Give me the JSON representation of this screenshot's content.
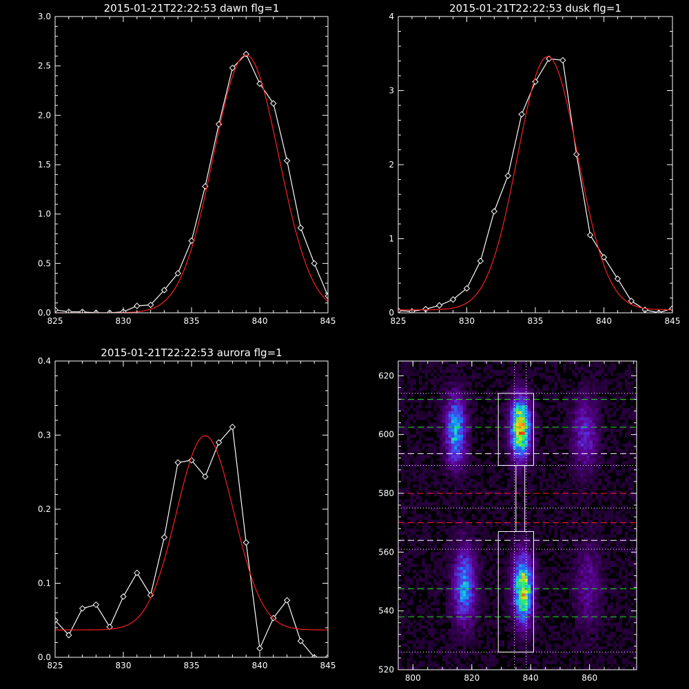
{
  "chart_data": [
    {
      "id": "dawn",
      "type": "line",
      "title": "2015-01-21T22:22:53 dawn flg=1",
      "xlim": [
        825,
        845
      ],
      "ylim": [
        0,
        3.0
      ],
      "xticks": [
        "825",
        "830",
        "835",
        "840",
        "845"
      ],
      "yticks": [
        "0.0",
        "0.5",
        "1.0",
        "1.5",
        "2.0",
        "2.5",
        "3.0"
      ],
      "series": [
        {
          "kind": "data",
          "color": "#ffffff",
          "marker": "diamond",
          "x": [
            825,
            826,
            827,
            828,
            829,
            830,
            831,
            832,
            833,
            834,
            835,
            836,
            837,
            838,
            839,
            840,
            841,
            842,
            843,
            844,
            845
          ],
          "y": [
            0.03,
            0.01,
            0.01,
            0.0,
            0.0,
            0.01,
            0.07,
            0.08,
            0.23,
            0.4,
            0.73,
            1.28,
            1.91,
            2.48,
            2.62,
            2.32,
            2.12,
            1.54,
            0.86,
            0.5,
            0.17
          ]
        },
        {
          "kind": "fit",
          "color": "#ff2020",
          "A": 2.61,
          "mu": 839.0,
          "sigma": 2.4,
          "base": 0.0
        }
      ]
    },
    {
      "id": "dusk",
      "type": "line",
      "title": "2015-01-21T22:22:53 dusk flg=1",
      "xlim": [
        825,
        845
      ],
      "ylim": [
        0,
        4
      ],
      "xticks": [
        "825",
        "830",
        "835",
        "840",
        "845"
      ],
      "yticks": [
        "0",
        "1",
        "2",
        "3",
        "4"
      ],
      "series": [
        {
          "kind": "data",
          "color": "#ffffff",
          "marker": "diamond",
          "x": [
            825,
            826,
            827,
            828,
            829,
            830,
            831,
            832,
            833,
            834,
            835,
            836,
            837,
            838,
            839,
            840,
            841,
            842,
            843,
            844,
            845
          ],
          "y": [
            0.03,
            0.02,
            0.05,
            0.1,
            0.18,
            0.33,
            0.7,
            1.37,
            1.85,
            2.68,
            3.12,
            3.43,
            3.41,
            2.14,
            1.05,
            0.75,
            0.46,
            0.16,
            0.04,
            0.0,
            0.06
          ]
        },
        {
          "kind": "fit",
          "color": "#ff2020",
          "A": 3.42,
          "mu": 835.9,
          "sigma": 2.2,
          "base": 0.04
        }
      ]
    },
    {
      "id": "aurora",
      "type": "line",
      "title": "2015-01-21T22:22:53 aurora flg=1",
      "xlim": [
        825,
        845
      ],
      "ylim": [
        0,
        0.4
      ],
      "xticks": [
        "825",
        "830",
        "835",
        "840",
        "845"
      ],
      "yticks": [
        "0.0",
        "0.1",
        "0.2",
        "0.3",
        "0.4"
      ],
      "series": [
        {
          "kind": "data",
          "color": "#ffffff",
          "marker": "diamond",
          "x": [
            825,
            826,
            827,
            828,
            829,
            830,
            831,
            832,
            833,
            834,
            835,
            836,
            837,
            838,
            839,
            840,
            841,
            842,
            843,
            844,
            845
          ],
          "y": [
            0.05,
            0.03,
            0.066,
            0.071,
            0.041,
            0.082,
            0.114,
            0.084,
            0.162,
            0.263,
            0.266,
            0.244,
            0.29,
            0.311,
            0.155,
            0.012,
            0.053,
            0.077,
            0.022,
            0.0,
            0.0
          ]
        },
        {
          "kind": "fit",
          "color": "#ff2020",
          "A": 0.262,
          "mu": 836.0,
          "sigma": 2.1,
          "base": 0.037
        }
      ]
    },
    {
      "id": "spectrogram",
      "type": "heatmap",
      "title": "",
      "xlim": [
        795,
        876
      ],
      "ylim": [
        520,
        625
      ],
      "xticks": [
        "800",
        "820",
        "840",
        "860"
      ],
      "yticks": [
        "520",
        "540",
        "560",
        "580",
        "600",
        "620"
      ],
      "tick_values_x": [
        800,
        820,
        840,
        860
      ],
      "tick_values_y": [
        520,
        540,
        560,
        580,
        600,
        620
      ],
      "colormap": [
        "#000000",
        "#2a0040",
        "#5a0090",
        "#5a2cd8",
        "#1a78ff",
        "#18d0d8",
        "#40f040",
        "#f0e020",
        "#ff3000"
      ],
      "blobs": [
        {
          "cx": 814,
          "cy": 601,
          "sx": 2.4,
          "sy": 8,
          "amp": 0.5
        },
        {
          "cx": 817,
          "cy": 548,
          "sx": 2.6,
          "sy": 9,
          "amp": 0.45
        },
        {
          "cx": 836,
          "cy": 602,
          "sx": 2.3,
          "sy": 7,
          "amp": 0.85
        },
        {
          "cx": 837,
          "cy": 547,
          "sx": 2.3,
          "sy": 8,
          "amp": 0.75
        },
        {
          "cx": 858,
          "cy": 600,
          "sx": 3,
          "sy": 9,
          "amp": 0.25
        },
        {
          "cx": 859,
          "cy": 548,
          "sx": 3,
          "sy": 10,
          "amp": 0.18
        }
      ],
      "hlines": [
        {
          "y": 614,
          "color": "#ffffff",
          "dash": "1,3"
        },
        {
          "y": 612,
          "color": "#20e020",
          "dash": "9,5"
        },
        {
          "y": 602.5,
          "color": "#20e020",
          "dash": "9,5"
        },
        {
          "y": 593.5,
          "color": "#ffffff",
          "dash": "9,5"
        },
        {
          "y": 589.5,
          "color": "#ffffff",
          "dash": "1,3"
        },
        {
          "y": 580,
          "color": "#ff2020",
          "dash": "9,5"
        },
        {
          "y": 575,
          "color": "#ffffff",
          "dash": "1,3"
        },
        {
          "y": 570,
          "color": "#ff2020",
          "dash": "9,5"
        },
        {
          "y": 564,
          "color": "#ffffff",
          "dash": "9,5"
        },
        {
          "y": 561,
          "color": "#ffffff",
          "dash": "1,3"
        },
        {
          "y": 547.5,
          "color": "#20e020",
          "dash": "9,5"
        },
        {
          "y": 538,
          "color": "#20e020",
          "dash": "9,5"
        },
        {
          "y": 526,
          "color": "#ffffff",
          "dash": "1,3"
        }
      ],
      "vlines": [
        {
          "x": 834.5,
          "color": "#ffffff",
          "dash": "1,3"
        },
        {
          "x": 838.5,
          "color": "#ffffff",
          "dash": "1,3"
        }
      ],
      "boxes": [
        {
          "x0": 829,
          "x1": 841,
          "y0": 589.5,
          "y1": 614
        },
        {
          "x0": 829,
          "x1": 841,
          "y0": 526,
          "y1": 567
        },
        {
          "x0": 835,
          "x1": 838,
          "y0": 567,
          "y1": 589.5
        }
      ]
    }
  ]
}
